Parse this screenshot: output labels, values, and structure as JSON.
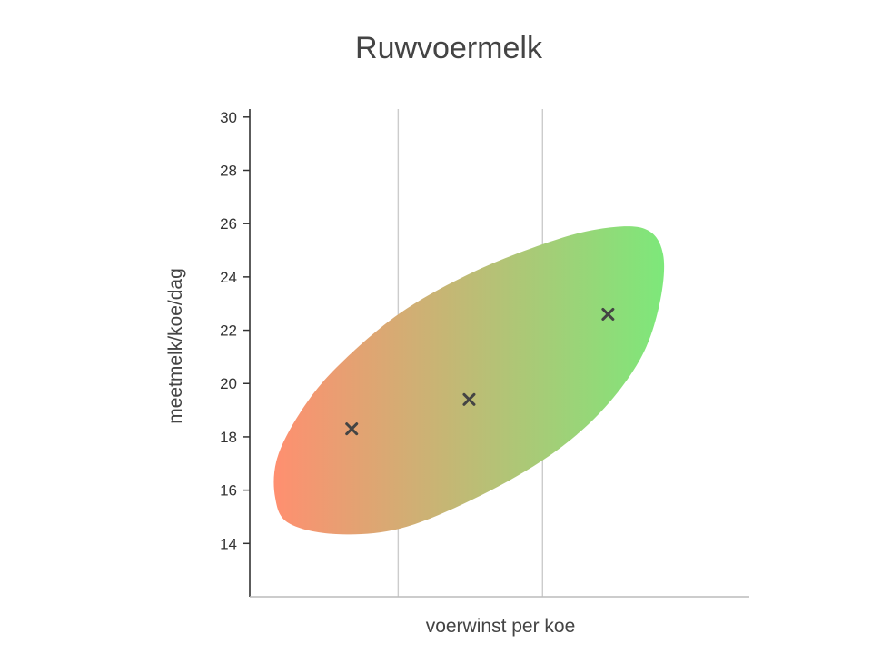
{
  "chart_data": {
    "type": "scatter",
    "title": "Ruwvoermelk",
    "xlabel": "voerwinst per koe",
    "ylabel": "meetmelk/koe/dag",
    "xlim": [
      0,
      100
    ],
    "ylim": [
      12,
      30.3
    ],
    "yticks": [
      14,
      16,
      18,
      20,
      22,
      24,
      26,
      28,
      30
    ],
    "x_tick_labels_visible": false,
    "x_gridlines": [
      29.7,
      58.6
    ],
    "points": [
      {
        "x": 20.4,
        "y": 18.3
      },
      {
        "x": 43.9,
        "y": 19.4
      },
      {
        "x": 71.7,
        "y": 22.6
      }
    ],
    "region": {
      "description_color_from": "#ff8f70",
      "description_color_to": "#7de87a"
    },
    "marker": "x",
    "marker_color": "#444444"
  }
}
